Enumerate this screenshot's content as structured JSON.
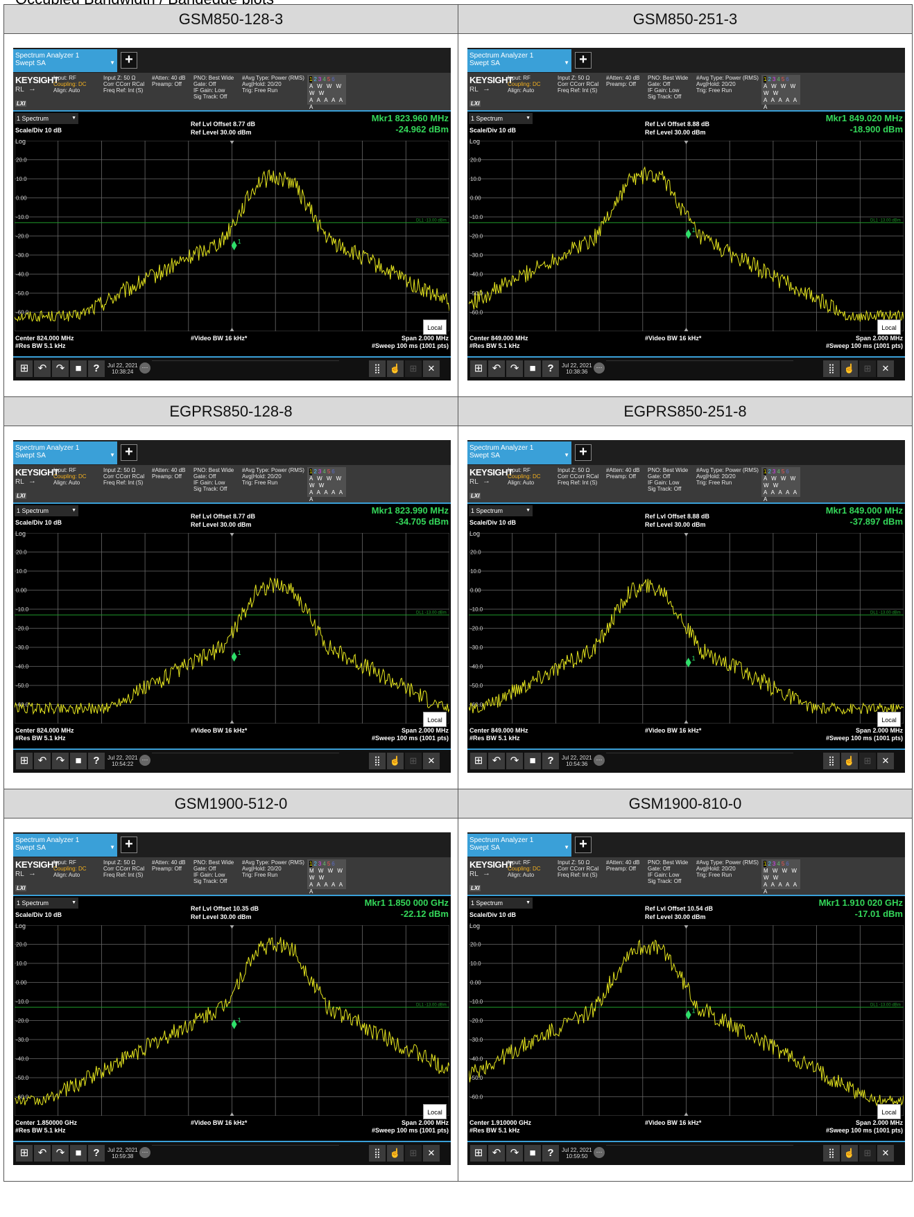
{
  "page_title_fragment": "Occupied Bandwidth / Bandedge plots",
  "panels": [
    {
      "title": "GSM850-128-3",
      "mkr_freq": "Mkr1  823.960 MHz",
      "mkr_level": "-24.962 dBm",
      "ref_offset": "Ref Lvl Offset 8.77 dB",
      "center": "Center 824.000 MHz",
      "trace_row1": "1 2 3 4 5 6",
      "trace_row2": "A W W W W W",
      "trace_row3": "A A A A A A",
      "date": "Jul 22, 2021",
      "time": "10:38:24",
      "peak_x": 0.6,
      "peak_db": 11,
      "marker_x": 0.505,
      "marker_db": -25
    },
    {
      "title": "GSM850-251-3",
      "mkr_freq": "Mkr1  849.020 MHz",
      "mkr_level": "-18.900 dBm",
      "ref_offset": "Ref Lvl Offset 8.88 dB",
      "center": "Center 849.000 MHz",
      "trace_row1": "1 2 3 4 5 6",
      "trace_row2": "A W W W W W",
      "trace_row3": "A A A A A A",
      "date": "Jul 22, 2021",
      "time": "10:38:36",
      "peak_x": 0.41,
      "peak_db": 12,
      "marker_x": 0.505,
      "marker_db": -19
    },
    {
      "title": "EGPRS850-128-8",
      "mkr_freq": "Mkr1  823.990 MHz",
      "mkr_level": "-34.705 dBm",
      "ref_offset": "Ref Lvl Offset 8.77 dB",
      "center": "Center 824.000 MHz",
      "trace_row1": "1 2 3 4 5 6",
      "trace_row2": "A W W W W W",
      "trace_row3": "A A A A A A",
      "date": "Jul 22, 2021",
      "time": "10:54:22",
      "peak_x": 0.6,
      "peak_db": 3,
      "marker_x": 0.505,
      "marker_db": -35
    },
    {
      "title": "EGPRS850-251-8",
      "mkr_freq": "Mkr1  849.000 MHz",
      "mkr_level": "-37.897 dBm",
      "ref_offset": "Ref Lvl Offset 8.88 dB",
      "center": "Center 849.000 MHz",
      "trace_row1": "1 2 3 4 5 6",
      "trace_row2": "A W W W W W",
      "trace_row3": "A A A A A A",
      "date": "Jul 22, 2021",
      "time": "10:54:36",
      "peak_x": 0.41,
      "peak_db": 2,
      "marker_x": 0.505,
      "marker_db": -38
    },
    {
      "title": "GSM1900-512-0",
      "mkr_freq": "Mkr1  1.850 000 GHz",
      "mkr_level": "-22.12 dBm",
      "ref_offset": "Ref Lvl Offset 10.35 dB",
      "center": "Center 1.850000 GHz",
      "trace_row1": "1 2 3 4 5 6",
      "trace_row2": "M W W W W W",
      "trace_row3": "A A A A A A",
      "date": "Jul 22, 2021",
      "time": "10:59:38",
      "peak_x": 0.6,
      "peak_db": 20,
      "marker_x": 0.505,
      "marker_db": -22
    },
    {
      "title": "GSM1900-810-0",
      "mkr_freq": "Mkr1  1.910 020 GHz",
      "mkr_level": "-17.01 dBm",
      "ref_offset": "Ref Lvl Offset 10.54 dB",
      "center": "Center 1.910000 GHz",
      "trace_row1": "1 2 3 4 5 6",
      "trace_row2": "M W W W W W",
      "trace_row3": "A A A A A A",
      "date": "Jul 22, 2021",
      "time": "10:59:50",
      "peak_x": 0.41,
      "peak_db": 19,
      "marker_x": 0.505,
      "marker_db": -17
    }
  ],
  "common": {
    "mode_line1": "Spectrum Analyzer 1",
    "mode_line2": "Swept SA",
    "brand": "KEYSIGHT",
    "rl": "RL",
    "lxi": "LXI",
    "col1": "Input: RF",
    "col1_warn": "Coupling: DC",
    "col1b": "Align: Auto",
    "col2": "Input Z: 50 Ω\nCorr CCorr RCal\nFreq Ref: Int (S)",
    "col3": "#Atten: 40 dB\nPreamp: Off",
    "col4": "PNO: Best Wide\nGate: Off\nIF Gain: Low\nSig Track: Off",
    "col5": "#Avg Type: Power (RMS)\nAvg|Hold: 20/20\nTrig: Free Run",
    "spectrum_dd": "1 Spectrum",
    "scale": "Scale/Div 10 dB",
    "log": "Log",
    "ref_level": "Ref Level 30.00 dBm",
    "y_ticks": [
      "20.0",
      "10.0",
      "0.00",
      "-10.0",
      "-20.0",
      "-30.0",
      "-40.0",
      "-50.0",
      "-60.0"
    ],
    "dl_label": "DL1 -13.00 dBm",
    "res_bw": "#Res BW 5.1 kHz",
    "video_bw": "#Video BW 16 kHz*",
    "span": "Span 2.000 MHz",
    "sweep": "#Sweep 100 ms (1001 pts)",
    "local": "Local",
    "marker_label": "1",
    "more": "···"
  },
  "colors": {
    "trace": "#e6e61e",
    "marker": "#2ee06a",
    "display_line": "#1f9a2a",
    "grid": "#6a6a6a",
    "accent": "#3aa0d8"
  },
  "icons": [
    "windows-icon",
    "undo-icon",
    "redo-icon",
    "file-icon",
    "help-icon",
    "grid-icon",
    "touch-icon",
    "fullscreen-icon"
  ]
}
